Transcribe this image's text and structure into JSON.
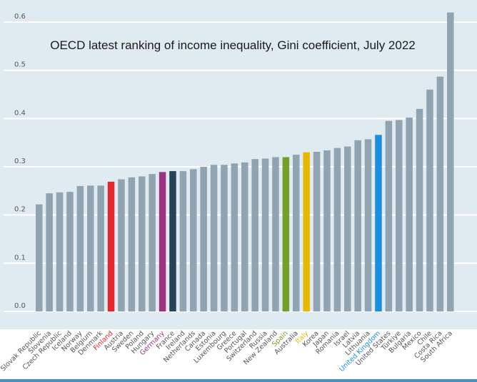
{
  "chart_data": {
    "type": "bar",
    "title": "OECD latest ranking of income inequality, Gini coefficient, July 2022",
    "xlabel": "",
    "ylabel": "",
    "ylim": [
      0,
      0.6
    ],
    "yticks": [
      "0.0",
      "0.1",
      "0.2",
      "0.3",
      "0.4",
      "0.5",
      "0.6"
    ],
    "ytick_values": [
      0,
      0.1,
      0.2,
      0.3,
      0.4,
      0.5,
      0.6
    ],
    "grid": true,
    "legend": "none",
    "default_color": "#8fa3b1",
    "categories": [
      "Slovak Republic",
      "Slovenia",
      "Czech Republic",
      "Iceland",
      "Norway",
      "Belgium",
      "Denmark",
      "Finland",
      "Austria",
      "Sweden",
      "Poland",
      "Hungary",
      "Germany",
      "France",
      "Ireland",
      "Netherlands",
      "Canada",
      "Estonia",
      "Luxembourg",
      "Greece",
      "Portugal",
      "Switzerland",
      "Russia",
      "New Zealand",
      "Spain",
      "Australia",
      "Italy",
      "Korea",
      "Japan",
      "Romania",
      "Israel",
      "Latvia",
      "Lithuania",
      "United Kingdom",
      "United States",
      "Türkiye",
      "Bulgaria",
      "Mexico",
      "Chile",
      "Costa Rica",
      "South Africa"
    ],
    "values": [
      0.222,
      0.245,
      0.247,
      0.248,
      0.26,
      0.261,
      0.261,
      0.269,
      0.274,
      0.278,
      0.28,
      0.285,
      0.289,
      0.291,
      0.291,
      0.295,
      0.3,
      0.304,
      0.304,
      0.307,
      0.309,
      0.316,
      0.317,
      0.32,
      0.32,
      0.325,
      0.33,
      0.331,
      0.334,
      0.339,
      0.342,
      0.355,
      0.357,
      0.366,
      0.395,
      0.397,
      0.402,
      0.42,
      0.46,
      0.487,
      0.62
    ],
    "highlights": {
      "Finland": "#e52630",
      "Germany": "#9b3282",
      "France": "#234459",
      "Spain": "#72a02a",
      "Italy": "#e6b800",
      "United Kingdom": "#1a8ee0"
    },
    "label_highlights": {
      "Finland": "#e52630",
      "Germany": "#9b3282",
      "Spain": "#72a02a",
      "Italy": "#e6b800",
      "United Kingdom": "#1a8ee0"
    },
    "label_default_color": "#555555"
  }
}
